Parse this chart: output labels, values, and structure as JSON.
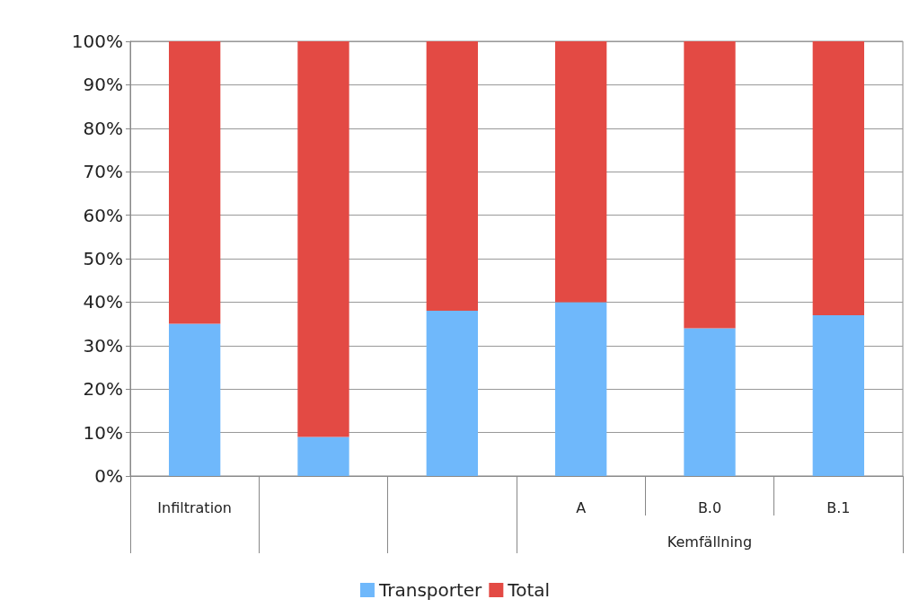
{
  "chart_data": {
    "type": "bar",
    "stacked": true,
    "categories": [
      "Infiltration",
      null,
      null,
      "A",
      "B.0",
      "B.1"
    ],
    "series": [
      {
        "name": "Transporter",
        "color": "#6fb8fb",
        "values": [
          35,
          9,
          38,
          40,
          34,
          37
        ]
      },
      {
        "name": "Total",
        "color": "#e34a44",
        "values": [
          65,
          91,
          62,
          60,
          66,
          63
        ]
      }
    ],
    "ylim": [
      0,
      100
    ],
    "yticks": [
      {
        "value": 0,
        "label": "0%"
      },
      {
        "value": 10,
        "label": "10%"
      },
      {
        "value": 20,
        "label": "20%"
      },
      {
        "value": 30,
        "label": "30%"
      },
      {
        "value": 40,
        "label": "40%"
      },
      {
        "value": 50,
        "label": "50%"
      },
      {
        "value": 60,
        "label": "60%"
      },
      {
        "value": 70,
        "label": "70%"
      },
      {
        "value": 80,
        "label": "80%"
      },
      {
        "value": 90,
        "label": "90%"
      },
      {
        "value": 100,
        "label": "100%"
      }
    ],
    "annotations": [
      "Kemfällning"
    ],
    "grid": "y",
    "legend": "bottom"
  }
}
